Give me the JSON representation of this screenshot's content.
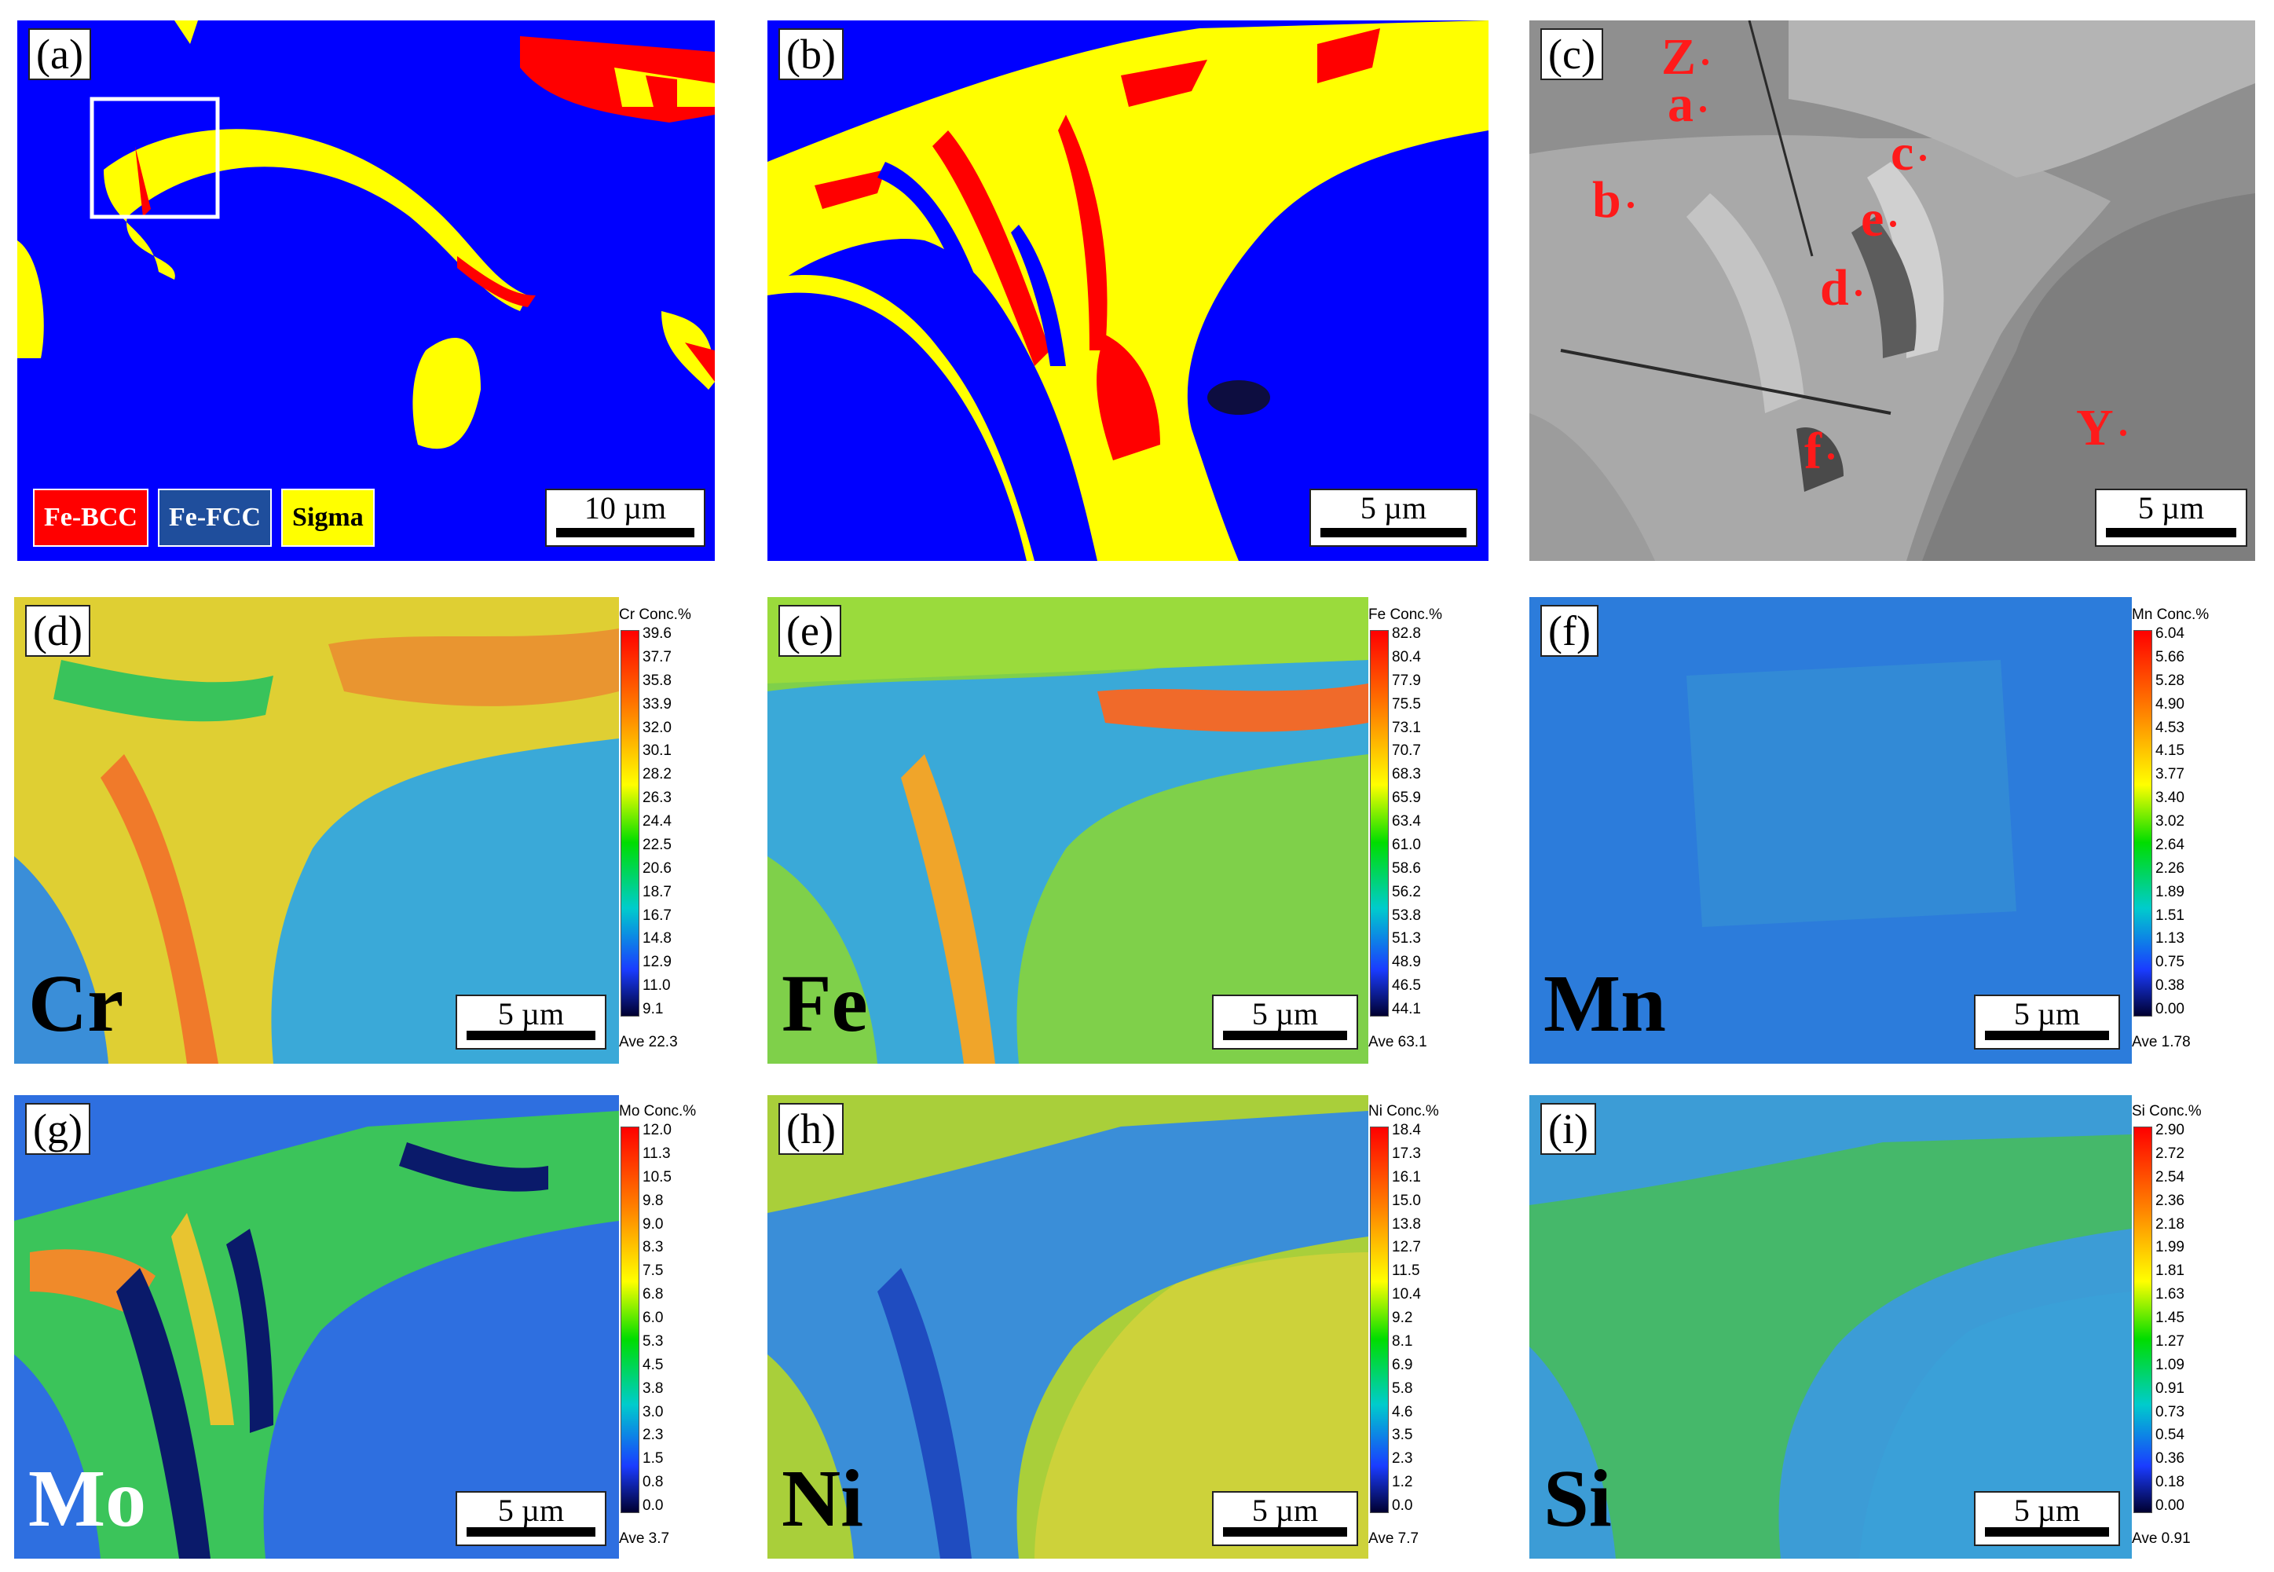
{
  "panels": {
    "a": {
      "label": "(a)",
      "scale": "10 µm",
      "legend": [
        {
          "text": "Fe-BCC",
          "color": "#ff0000"
        },
        {
          "text": "Fe-FCC",
          "color": "#1f4e9c"
        },
        {
          "text": "Sigma",
          "color": "#ffff00"
        }
      ]
    },
    "b": {
      "label": "(b)",
      "scale": "5 µm"
    },
    "c": {
      "label": "(c)",
      "scale": "5 µm",
      "points": {
        "Z": "Z",
        "a": "a",
        "c": "c",
        "b": "b",
        "e": "e",
        "d": "d",
        "f": "f",
        "Y": "Y"
      }
    },
    "d": {
      "label": "(d)",
      "element": "Cr",
      "scale": "5 µm",
      "cbar": {
        "head": "Cr  Conc.%",
        "ticks": [
          "39.6",
          "37.7",
          "35.8",
          "33.9",
          "32.0",
          "30.1",
          "28.2",
          "26.3",
          "24.4",
          "22.5",
          "20.6",
          "18.7",
          "16.7",
          "14.8",
          "12.9",
          "11.0",
          "9.1"
        ],
        "ave": "Ave 22.3"
      }
    },
    "e": {
      "label": "(e)",
      "element": "Fe",
      "scale": "5 µm",
      "cbar": {
        "head": "Fe  Conc.%",
        "ticks": [
          "82.8",
          "80.4",
          "77.9",
          "75.5",
          "73.1",
          "70.7",
          "68.3",
          "65.9",
          "63.4",
          "61.0",
          "58.6",
          "56.2",
          "53.8",
          "51.3",
          "48.9",
          "46.5",
          "44.1"
        ],
        "ave": "Ave 63.1"
      }
    },
    "f": {
      "label": "(f)",
      "element": "Mn",
      "scale": "5 µm",
      "cbar": {
        "head": "Mn  Conc.%",
        "ticks": [
          "6.04",
          "5.66",
          "5.28",
          "4.90",
          "4.53",
          "4.15",
          "3.77",
          "3.40",
          "3.02",
          "2.64",
          "2.26",
          "1.89",
          "1.51",
          "1.13",
          "0.75",
          "0.38",
          "0.00"
        ],
        "ave": "Ave 1.78"
      }
    },
    "g": {
      "label": "(g)",
      "element": "Mo",
      "scale": "5 µm",
      "cbar": {
        "head": "Mo  Conc.%",
        "ticks": [
          "12.0",
          "11.3",
          "10.5",
          "9.8",
          "9.0",
          "8.3",
          "7.5",
          "6.8",
          "6.0",
          "5.3",
          "4.5",
          "3.8",
          "3.0",
          "2.3",
          "1.5",
          "0.8",
          "0.0"
        ],
        "ave": "Ave 3.7"
      }
    },
    "h": {
      "label": "(h)",
      "element": "Ni",
      "scale": "5 µm",
      "cbar": {
        "head": "Ni  Conc.%",
        "ticks": [
          "18.4",
          "17.3",
          "16.1",
          "15.0",
          "13.8",
          "12.7",
          "11.5",
          "10.4",
          "9.2",
          "8.1",
          "6.9",
          "5.8",
          "4.6",
          "3.5",
          "2.3",
          "1.2",
          "0.0"
        ],
        "ave": "Ave 7.7"
      }
    },
    "i": {
      "label": "(i)",
      "element": "Si",
      "scale": "5 µm",
      "cbar": {
        "head": "Si  Conc.%",
        "ticks": [
          "2.90",
          "2.72",
          "2.54",
          "2.36",
          "2.18",
          "1.99",
          "1.81",
          "1.63",
          "1.45",
          "1.27",
          "1.09",
          "0.91",
          "0.73",
          "0.54",
          "0.36",
          "0.18",
          "0.00"
        ],
        "ave": "Ave 0.91"
      }
    }
  },
  "colors": {
    "bcc": "#ff0000",
    "fcc": "#0000ff",
    "sigma": "#ffff00",
    "sem": "#9a9a9a",
    "label": "#ff1a1a"
  }
}
